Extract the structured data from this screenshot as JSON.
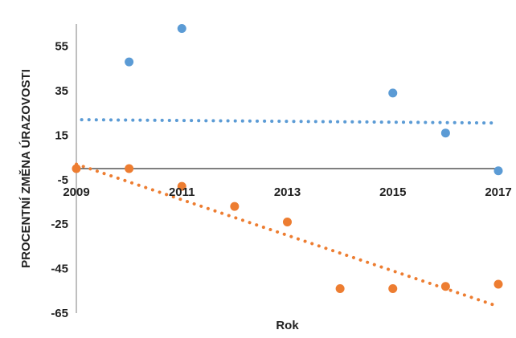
{
  "chart_data": {
    "type": "scatter",
    "title": "",
    "xlabel": "Rok",
    "ylabel": "PROCENTNÍ ZMĚNA ÚRAZOVOSTI",
    "xlim": [
      2009,
      2017
    ],
    "ylim": [
      -65,
      65
    ],
    "x_ticks": [
      2009,
      2011,
      2013,
      2015,
      2017
    ],
    "x_tick_labels": [
      "2009",
      "2011",
      "2013",
      "2015",
      "2017"
    ],
    "y_ticks": [
      55,
      35,
      15,
      -5,
      -25,
      -45,
      -65
    ],
    "y_tick_labels": [
      "55",
      "35",
      "15",
      "-5",
      "-25",
      "-45",
      "-65"
    ],
    "x_axis_at_y": 0,
    "grid": false,
    "legend": "none",
    "series": [
      {
        "color": "#5B9BD5",
        "points": [
          {
            "x": 2010,
            "y": 48
          },
          {
            "x": 2011,
            "y": 63
          },
          {
            "x": 2015,
            "y": 34
          },
          {
            "x": 2016,
            "y": 16
          },
          {
            "x": 2017,
            "y": -1
          }
        ],
        "trendline": {
          "x0": 2009.1,
          "y0": 22,
          "x1": 2017,
          "y1": 20.5
        }
      },
      {
        "color": "#ED7D31",
        "points": [
          {
            "x": 2009,
            "y": 0
          },
          {
            "x": 2010,
            "y": 0
          },
          {
            "x": 2011,
            "y": -8
          },
          {
            "x": 2012,
            "y": -17
          },
          {
            "x": 2013,
            "y": -24
          },
          {
            "x": 2014,
            "y": -54
          },
          {
            "x": 2015,
            "y": -54
          },
          {
            "x": 2016,
            "y": -53
          },
          {
            "x": 2017,
            "y": -52
          }
        ],
        "trendline": {
          "x0": 2009,
          "y0": 2,
          "x1": 2017,
          "y1": -62
        }
      }
    ]
  }
}
